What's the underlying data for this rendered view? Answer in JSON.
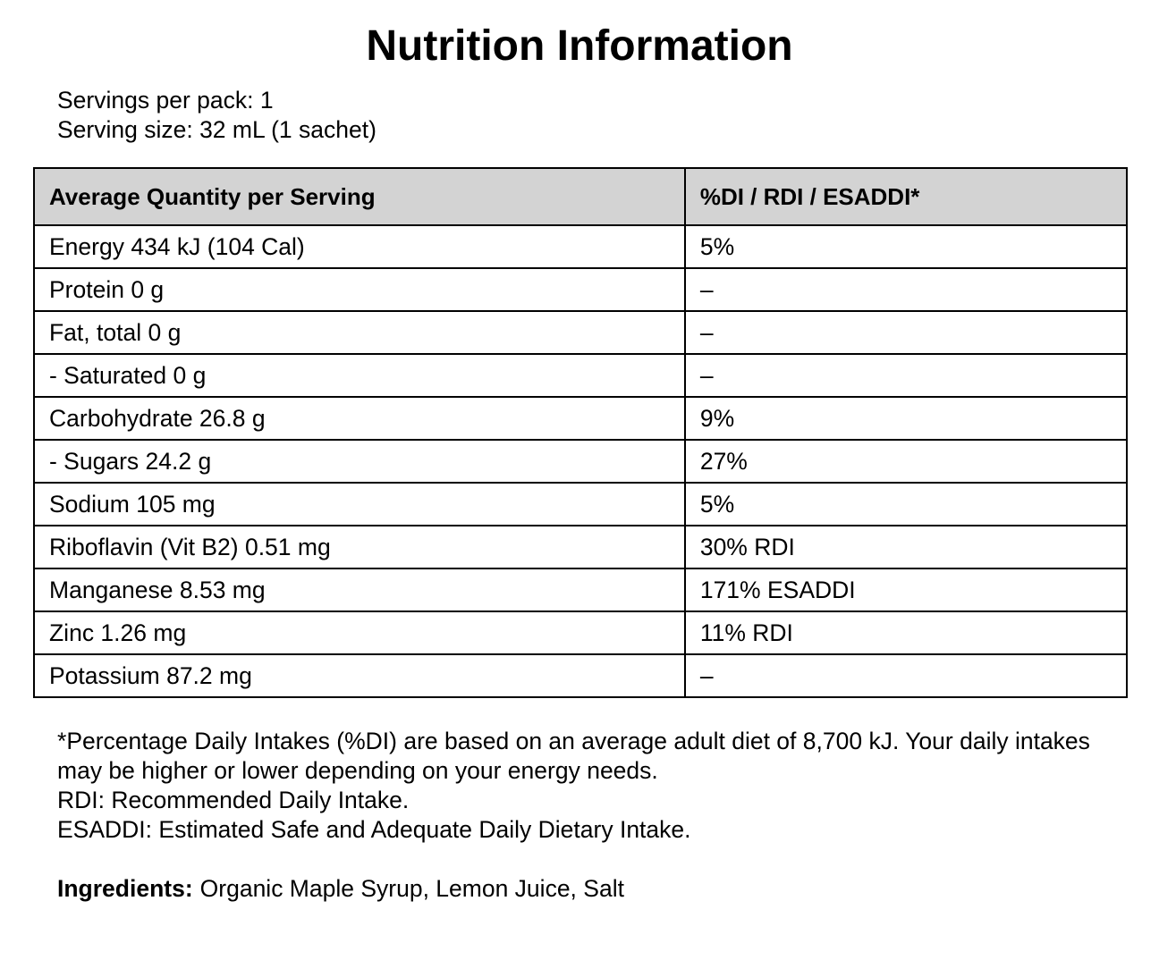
{
  "page": {
    "title": "Nutrition Information"
  },
  "serving_info": {
    "servings_per_pack": "Servings per pack: 1",
    "serving_size": "Serving size: 32 mL (1 sachet)"
  },
  "table": {
    "headers": [
      "Average Quantity per Serving",
      "%DI / RDI / ESADDI*"
    ],
    "rows": [
      {
        "nutrient": "Energy 434 kJ (104 Cal)",
        "di": "5%"
      },
      {
        "nutrient": "Protein 0 g",
        "di": "–"
      },
      {
        "nutrient": "Fat, total 0 g",
        "di": "–"
      },
      {
        "nutrient": "- Saturated 0 g",
        "di": "–"
      },
      {
        "nutrient": "Carbohydrate 26.8 g",
        "di": "9%"
      },
      {
        "nutrient": "- Sugars 24.2 g",
        "di": "27%"
      },
      {
        "nutrient": "Sodium 105 mg",
        "di": "5%"
      },
      {
        "nutrient": "Riboflavin (Vit B2) 0.51 mg",
        "di": "30% RDI"
      },
      {
        "nutrient": "Manganese 8.53 mg",
        "di": "171% ESADDI"
      },
      {
        "nutrient": "Zinc 1.26 mg",
        "di": "11% RDI"
      },
      {
        "nutrient": "Potassium 87.2 mg",
        "di": "–"
      }
    ]
  },
  "footnotes": [
    "*Percentage Daily Intakes (%DI) are based on an average adult diet of 8,700 kJ. Your daily intakes may be higher or lower depending on your energy needs.",
    "RDI: Recommended Daily Intake.",
    "ESADDI: Estimated Safe and Adequate Daily Dietary Intake."
  ],
  "ingredients": {
    "label": "Ingredients:",
    "value": "Organic Maple Syrup, Lemon Juice, Salt"
  },
  "colors": {
    "page_bg": "#ffffff",
    "text": "#000000",
    "border": "#000000",
    "header_bg": "#d3d3d3"
  }
}
